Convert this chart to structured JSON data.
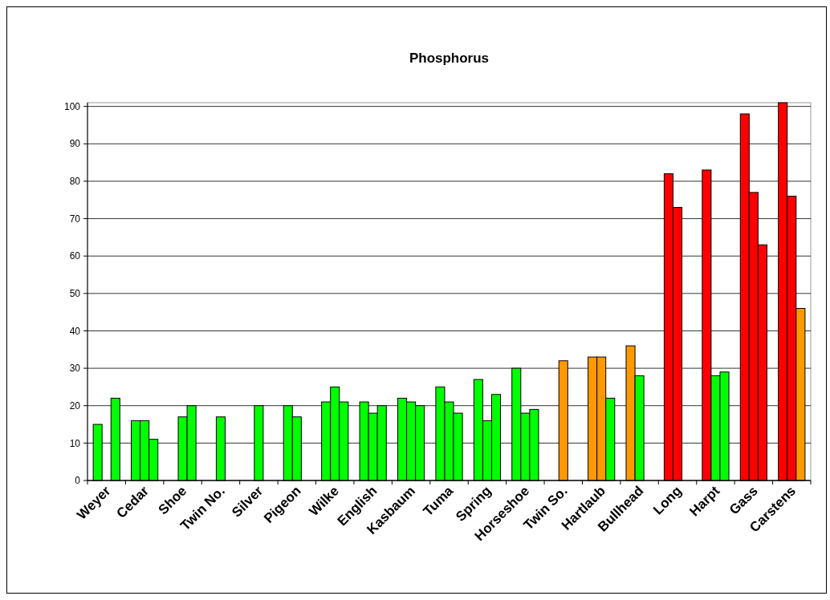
{
  "chart_data": {
    "type": "bar",
    "title": "Phosphorus",
    "categories": [
      "Weyer",
      "Cedar",
      "Shoe",
      "Twin No.",
      "Silver",
      "Pigeon",
      "Wilke",
      "English",
      "Kasbaum",
      "Tuma",
      "Spring",
      "Horseshoe",
      "Twin So.",
      "Hartlaub",
      "Bullhead",
      "Long",
      "Harpt",
      "Gass",
      "Carstens"
    ],
    "series": [
      {
        "values": [
          15,
          16,
          null,
          null,
          null,
          20,
          21,
          21,
          22,
          25,
          27,
          30,
          null,
          33,
          36,
          82,
          83,
          98,
          101
        ],
        "colors": [
          "#00ff00",
          "#00ff00",
          null,
          null,
          null,
          "#00ff00",
          "#00ff00",
          "#00ff00",
          "#00ff00",
          "#00ff00",
          "#00ff00",
          "#00ff00",
          null,
          "#ff9900",
          "#ff9900",
          "#ff0000",
          "#ff0000",
          "#ff0000",
          "#ff0000"
        ]
      },
      {
        "values": [
          null,
          16,
          17,
          17,
          20,
          17,
          25,
          18,
          21,
          21,
          16,
          18,
          32,
          33,
          28,
          73,
          28,
          77,
          76
        ],
        "colors": [
          null,
          "#00ff00",
          "#00ff00",
          "#00ff00",
          "#00ff00",
          "#00ff00",
          "#00ff00",
          "#00ff00",
          "#00ff00",
          "#00ff00",
          "#00ff00",
          "#00ff00",
          "#ff9900",
          "#ff9900",
          "#00ff00",
          "#ff0000",
          "#00ff00",
          "#ff0000",
          "#ff0000"
        ]
      },
      {
        "values": [
          22,
          11,
          20,
          null,
          null,
          null,
          21,
          20,
          20,
          18,
          23,
          19,
          null,
          22,
          null,
          null,
          29,
          63,
          46
        ],
        "colors": [
          "#00ff00",
          "#00ff00",
          "#00ff00",
          null,
          null,
          null,
          "#00ff00",
          "#00ff00",
          "#00ff00",
          "#00ff00",
          "#00ff00",
          "#00ff00",
          null,
          "#00ff00",
          null,
          null,
          "#00ff00",
          "#ff0000",
          "#ff9900"
        ]
      }
    ],
    "ylim": [
      0,
      101
    ],
    "yticks": [
      0,
      10,
      20,
      30,
      40,
      50,
      60,
      70,
      80,
      90,
      100
    ],
    "grid": "y"
  }
}
